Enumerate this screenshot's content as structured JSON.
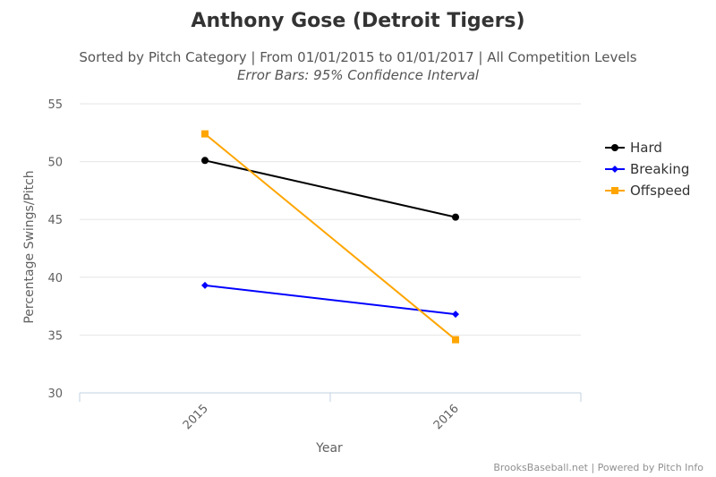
{
  "chart_data": {
    "type": "line",
    "title": "Anthony Gose (Detroit Tigers)",
    "subtitle": "Sorted by Pitch Category | From 01/01/2015 to 01/01/2017 | All Competition Levels",
    "subtitle2": "Error Bars: 95% Confidence Interval",
    "xlabel": "Year",
    "ylabel": "Percentage Swings/Pitch",
    "categories": [
      "2015",
      "2016"
    ],
    "yticks": [
      "30",
      "35",
      "40",
      "45",
      "50",
      "55"
    ],
    "ylim": [
      30,
      55
    ],
    "grid": true,
    "legend_position": "right",
    "series": [
      {
        "name": "Hard",
        "values": [
          50.1,
          45.2
        ],
        "color": "#000000",
        "marker": "circle"
      },
      {
        "name": "Breaking",
        "values": [
          39.3,
          36.8
        ],
        "color": "#0000ff",
        "marker": "diamond"
      },
      {
        "name": "Offspeed",
        "values": [
          52.4,
          34.6
        ],
        "color": "#ffa500",
        "marker": "square"
      }
    ],
    "credits": "BrooksBaseball.net | Powered by Pitch Info"
  }
}
